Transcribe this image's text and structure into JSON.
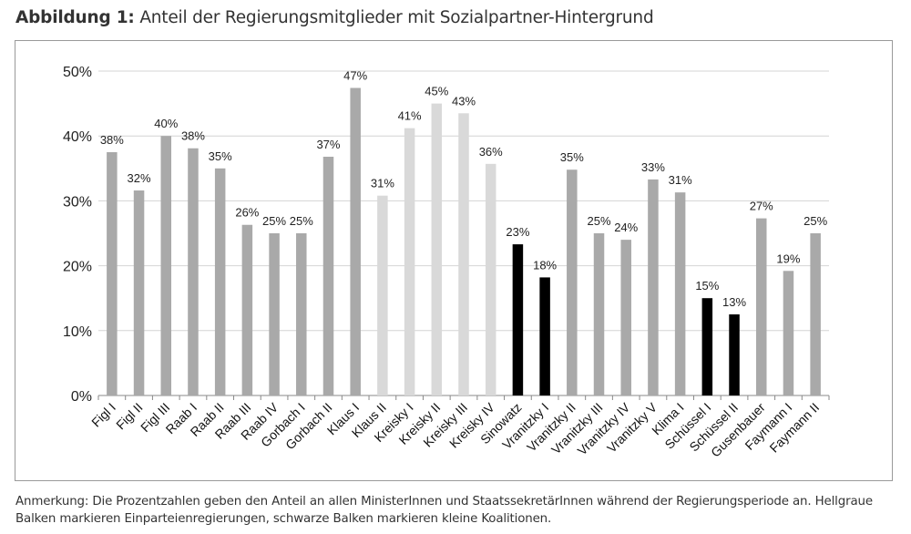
{
  "header": {
    "label": "Abbildung 1:",
    "title": "Anteil der Regierungsmitglieder mit Sozialpartner-Hintergrund"
  },
  "chart_data": {
    "type": "bar",
    "title": "Anteil der Regierungsmitglieder mit Sozialpartner-Hintergrund",
    "xlabel": "",
    "ylabel": "",
    "ylim": [
      0,
      50
    ],
    "yticks": [
      "0%",
      "10%",
      "20%",
      "30%",
      "40%",
      "50%"
    ],
    "grid": true,
    "categories": [
      "Figl I",
      "Figl II",
      "Figl III",
      "Raab I",
      "Raab II",
      "Raab III",
      "Raab IV",
      "Gorbach I",
      "Gorbach II",
      "Klaus I",
      "Klaus II",
      "Kreisky I",
      "Kreisky II",
      "Kreisky III",
      "Kreisky IV",
      "Sinowatz",
      "Vranitzky I",
      "Vranitzky II",
      "Vranitzky III",
      "Vranitzky IV",
      "Vranitzky V",
      "Klima I",
      "Schüssel I",
      "Schüssel II",
      "Gusenbauer",
      "Faymann I",
      "Faymann II"
    ],
    "values": [
      37.5,
      31.6,
      40.0,
      38.1,
      35.0,
      26.3,
      25.0,
      25.0,
      36.8,
      47.4,
      30.8,
      41.2,
      45.0,
      43.5,
      35.7,
      23.3,
      18.2,
      34.8,
      25.0,
      24.0,
      33.3,
      31.3,
      15.0,
      12.5,
      27.3,
      19.2,
      25.0
    ],
    "labels": [
      "38%",
      "32%",
      "40%",
      "38%",
      "35%",
      "26%",
      "25%",
      "25%",
      "37%",
      "47%",
      "31%",
      "41%",
      "45%",
      "43%",
      "36%",
      "23%",
      "18%",
      "35%",
      "25%",
      "24%",
      "33%",
      "31%",
      "15%",
      "13%",
      "27%",
      "19%",
      "25%"
    ],
    "bar_types": [
      "grand",
      "grand",
      "grand",
      "grand",
      "grand",
      "grand",
      "grand",
      "grand",
      "grand",
      "grand",
      "single",
      "single",
      "single",
      "single",
      "single",
      "small",
      "small",
      "grand",
      "grand",
      "grand",
      "grand",
      "grand",
      "small",
      "small",
      "grand",
      "grand",
      "grand"
    ],
    "colors": {
      "grand": "#a9a9a9",
      "single": "#d9d9d9",
      "small": "#000000",
      "grid": "#d4d4d4",
      "axis": "#888888"
    }
  },
  "note": "Anmerkung: Die Prozentzahlen geben den Anteil an allen MinisterInnen und StaatssekretärInnen während der Regierungsperiode an. Hellgraue Balken markieren Einparteienregierungen, schwarze Balken markieren kleine Koalitionen."
}
